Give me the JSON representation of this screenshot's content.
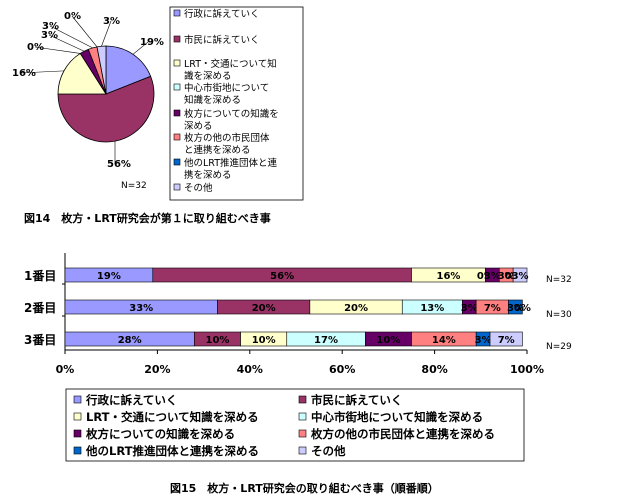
{
  "colors": {
    "行政に訴えていく": "#9999FF",
    "市民に訴えていく": "#993366",
    "LRT・交通について知識を深める": "#FFFFCC",
    "中心市街地について知識を深める": "#CCFFFF",
    "枚方についての知識を深める": "#660066",
    "枚方の他の市民団体と連携を深める": "#FF8080",
    "他のLRT推進団体と連携を深める": "#0066CC",
    "その他": "#CCCCFF"
  },
  "chart_data": [
    {
      "type": "pie",
      "caption": "図14　枚方・LRT研究会が第１に取り組むべき事",
      "note": "N=32",
      "legend_placement": "right",
      "legend": [
        "行政に訴えていく",
        "市民に訴えていく",
        "LRT・交通について知識を深める",
        "中心市街地について知識を深める",
        "枚方についての知識を深める",
        "枚方の他の市民団体と連携を深める",
        "他のLRT推進団体と連携を深める",
        "その他"
      ],
      "values": [
        19,
        56,
        16,
        0,
        3,
        3,
        0,
        3
      ],
      "labels": [
        "19%",
        "56%",
        "16%",
        "0%",
        "3%",
        "3%",
        "0%",
        "3%"
      ]
    },
    {
      "type": "bar",
      "orientation": "horizontal",
      "stacked": "percent",
      "caption": "図15　枚方・LRT研究会の取り組むべき事（順番順）",
      "categories": [
        "1番目",
        "2番目",
        "3番目"
      ],
      "notes": [
        "N=32",
        "N=30",
        "N=29"
      ],
      "xlim": [
        0,
        100
      ],
      "xticks": [
        "0%",
        "20%",
        "40%",
        "60%",
        "80%",
        "100%"
      ],
      "legend_placement": "bottom",
      "series": [
        {
          "name": "行政に訴えていく",
          "values": [
            19,
            33,
            28
          ],
          "labels": [
            "19%",
            "33%",
            "28%"
          ]
        },
        {
          "name": "市民に訴えていく",
          "values": [
            56,
            20,
            10
          ],
          "labels": [
            "56%",
            "20%",
            "10%"
          ]
        },
        {
          "name": "LRT・交通について知識を深める",
          "values": [
            16,
            20,
            10
          ],
          "labels": [
            "16%",
            "20%",
            "10%"
          ]
        },
        {
          "name": "中心市街地について知識を深める",
          "values": [
            0,
            13,
            17
          ],
          "labels": [
            "0%",
            "13%",
            "17%"
          ]
        },
        {
          "name": "枚方についての知識を深める",
          "values": [
            3,
            3,
            10
          ],
          "labels": [
            "3%",
            "3%",
            "10%"
          ]
        },
        {
          "name": "枚方の他の市民団体と連携を深める",
          "values": [
            3,
            7,
            14
          ],
          "labels": [
            "3%",
            "7%",
            "14%"
          ]
        },
        {
          "name": "他のLRT推進団体と連携を深める",
          "values": [
            0,
            3,
            3
          ],
          "labels": [
            "0%",
            "3%",
            "3%"
          ]
        },
        {
          "name": "その他",
          "values": [
            3,
            0,
            7
          ],
          "labels": [
            "3%",
            "0%",
            "7%"
          ]
        }
      ]
    }
  ]
}
